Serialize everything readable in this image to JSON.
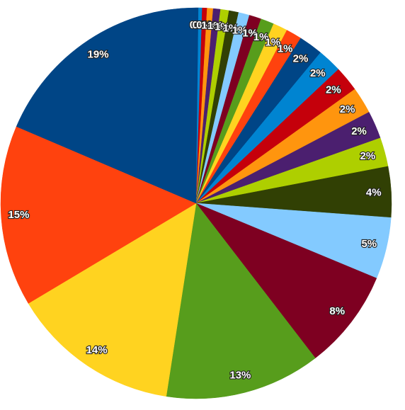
{
  "chart_data": {
    "type": "pie",
    "values": [
      0.2,
      0.3,
      0.4,
      0.5,
      0.6,
      0.7,
      0.8,
      0.9,
      1.0,
      1.1,
      1.2,
      1.3,
      2.0,
      2.0,
      2.1,
      2.2,
      2.3,
      2.4,
      4.2,
      5.1,
      8.3,
      12.9,
      14.0,
      15.0,
      18.6
    ],
    "value_labels": [
      "0%",
      "0%",
      "0%",
      "1%",
      "1%",
      "1%",
      "1%",
      "1%",
      "1%",
      "1%",
      "1%",
      "1%",
      "2%",
      "2%",
      "2%",
      "2%",
      "2%",
      "2%",
      "4%",
      "5%",
      "8%",
      "13%",
      "14%",
      "15%",
      "19%"
    ],
    "colors": [
      "#004586",
      "#0084d1",
      "#c5000b",
      "#ff950e",
      "#4b1f6f",
      "#aecf00",
      "#314004",
      "#83caff",
      "#7e0021",
      "#579d1c",
      "#ffd320",
      "#ff420e",
      "#004586",
      "#0084d1",
      "#c5000b",
      "#ff950e",
      "#4b1f6f",
      "#aecf00",
      "#314004",
      "#83caff",
      "#7e0021",
      "#579d1c",
      "#ffd320",
      "#ff420e",
      "#004586"
    ],
    "start_angle": 0,
    "direction": "clockwise"
  }
}
